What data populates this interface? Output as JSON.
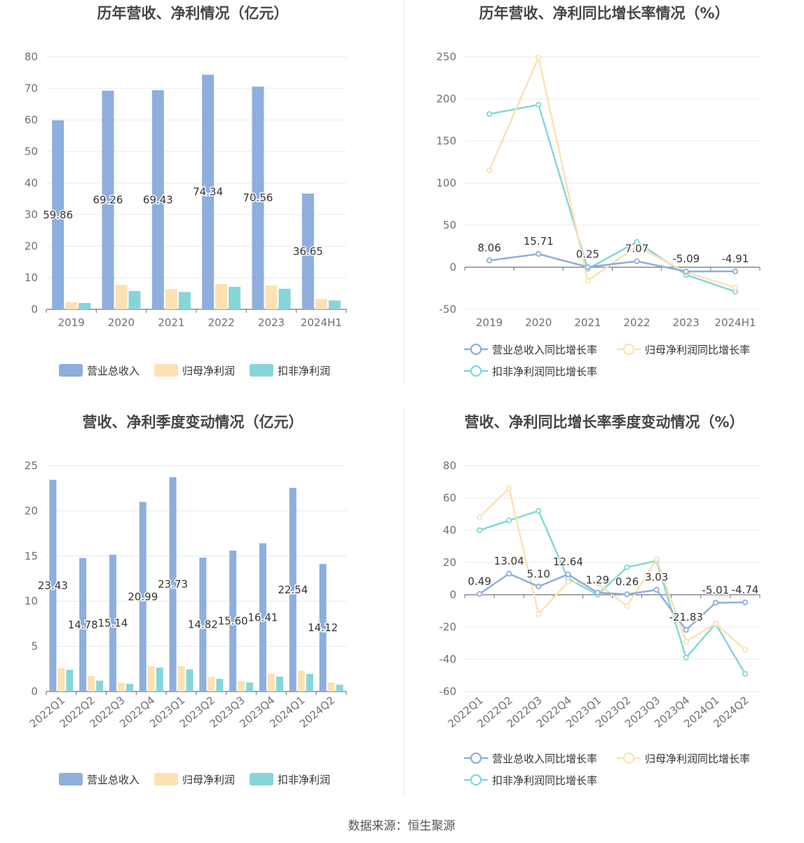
{
  "source_text": "数据来源：恒生聚源",
  "colors": {
    "revenue": "#8eaedd",
    "net_profit": "#fde1b2",
    "deducted_profit": "#86d6d9",
    "grid": "#e6e8ef",
    "axis": "#6e7079",
    "title": "#464646",
    "divider": "#e6e6e6"
  },
  "chart_data": [
    {
      "type": "bar",
      "title": "历年营收、净利情况（亿元）",
      "categories": [
        "2019",
        "2020",
        "2021",
        "2022",
        "2023",
        "2024H1"
      ],
      "ylim": [
        0,
        80
      ],
      "yticks": [
        0,
        10,
        20,
        30,
        40,
        50,
        60,
        70,
        80
      ],
      "grid": true,
      "legend_position": "bottom",
      "series": [
        {
          "name": "营业总收入",
          "values": [
            59.86,
            69.26,
            69.43,
            74.34,
            70.56,
            36.65
          ],
          "labels": [
            "59.86",
            "69.26",
            "69.43",
            "74.34",
            "70.56",
            "36.65"
          ]
        },
        {
          "name": "归母净利润",
          "values": [
            2.3,
            7.7,
            6.4,
            8.0,
            7.5,
            3.3
          ]
        },
        {
          "name": "扣非净利润",
          "values": [
            2.0,
            5.8,
            5.5,
            7.1,
            6.5,
            2.8
          ]
        }
      ]
    },
    {
      "type": "line",
      "title": "历年营收、净利同比增长率情况（%）",
      "categories": [
        "2019",
        "2020",
        "2021",
        "2022",
        "2023",
        "2024H1"
      ],
      "ylim": [
        -50,
        250
      ],
      "yticks": [
        -50,
        0,
        50,
        100,
        150,
        200,
        250
      ],
      "grid": true,
      "legend_position": "bottom",
      "series": [
        {
          "name": "营业总收入同比增长率",
          "values": [
            8.06,
            15.71,
            0.25,
            7.07,
            -5.09,
            -4.91
          ],
          "labels": [
            "8.06",
            "15.71",
            "0.25",
            "7.07",
            "-5.09",
            "-4.91"
          ]
        },
        {
          "name": "归母净利润同比增长率",
          "values": [
            115,
            249,
            -16,
            25,
            -6,
            -24
          ]
        },
        {
          "name": "扣非净利润同比增长率",
          "values": [
            182,
            193,
            -2,
            30,
            -9,
            -29
          ]
        }
      ]
    },
    {
      "type": "bar",
      "title": "营收、净利季度变动情况（亿元）",
      "categories": [
        "2022Q1",
        "2022Q2",
        "2022Q3",
        "2022Q4",
        "2023Q1",
        "2023Q2",
        "2023Q3",
        "2023Q4",
        "2024Q1",
        "2024Q2"
      ],
      "ylim": [
        0,
        25
      ],
      "yticks": [
        0,
        5,
        10,
        15,
        20,
        25
      ],
      "grid": true,
      "legend_position": "bottom",
      "series": [
        {
          "name": "营业总收入",
          "values": [
            23.43,
            14.78,
            15.14,
            20.99,
            23.73,
            14.82,
            15.6,
            16.41,
            22.54,
            14.12
          ],
          "labels": [
            "23.43",
            "14.78",
            "15.14",
            "20.99",
            "23.73",
            "14.82",
            "15.60",
            "16.41",
            "22.54",
            "14.12"
          ]
        },
        {
          "name": "归母净利润",
          "values": [
            2.6,
            1.7,
            0.95,
            2.8,
            2.8,
            1.6,
            1.15,
            1.95,
            2.3,
            1.0
          ]
        },
        {
          "name": "扣非净利润",
          "values": [
            2.4,
            1.2,
            0.85,
            2.65,
            2.45,
            1.4,
            1.0,
            1.65,
            1.95,
            0.75
          ]
        }
      ]
    },
    {
      "type": "line",
      "title": "营收、净利同比增长率季度变动情况（%）",
      "categories": [
        "2022Q1",
        "2022Q2",
        "2022Q3",
        "2022Q4",
        "2023Q1",
        "2023Q2",
        "2023Q3",
        "2023Q4",
        "2024Q1",
        "2024Q2"
      ],
      "ylim": [
        -60,
        80
      ],
      "yticks": [
        -60,
        -40,
        -20,
        0,
        20,
        40,
        60,
        80
      ],
      "grid": true,
      "legend_position": "bottom",
      "series": [
        {
          "name": "营业总收入同比增长率",
          "values": [
            0.49,
            13.04,
            5.1,
            12.64,
            1.29,
            0.26,
            3.03,
            -21.83,
            -5.01,
            -4.74
          ],
          "labels": [
            "0.49",
            "13.04",
            "5.10",
            "12.64",
            "1.29",
            "0.26",
            "3.03",
            "-21.83",
            "-5.01",
            "-4.74"
          ]
        },
        {
          "name": "归母净利润同比增长率",
          "values": [
            48,
            66,
            -12,
            8,
            7,
            -7,
            22,
            -29,
            -18,
            -34
          ]
        },
        {
          "name": "扣非净利润同比增长率",
          "values": [
            40,
            46,
            52,
            10,
            0,
            17,
            21,
            -39,
            -18,
            -49
          ]
        }
      ]
    }
  ]
}
